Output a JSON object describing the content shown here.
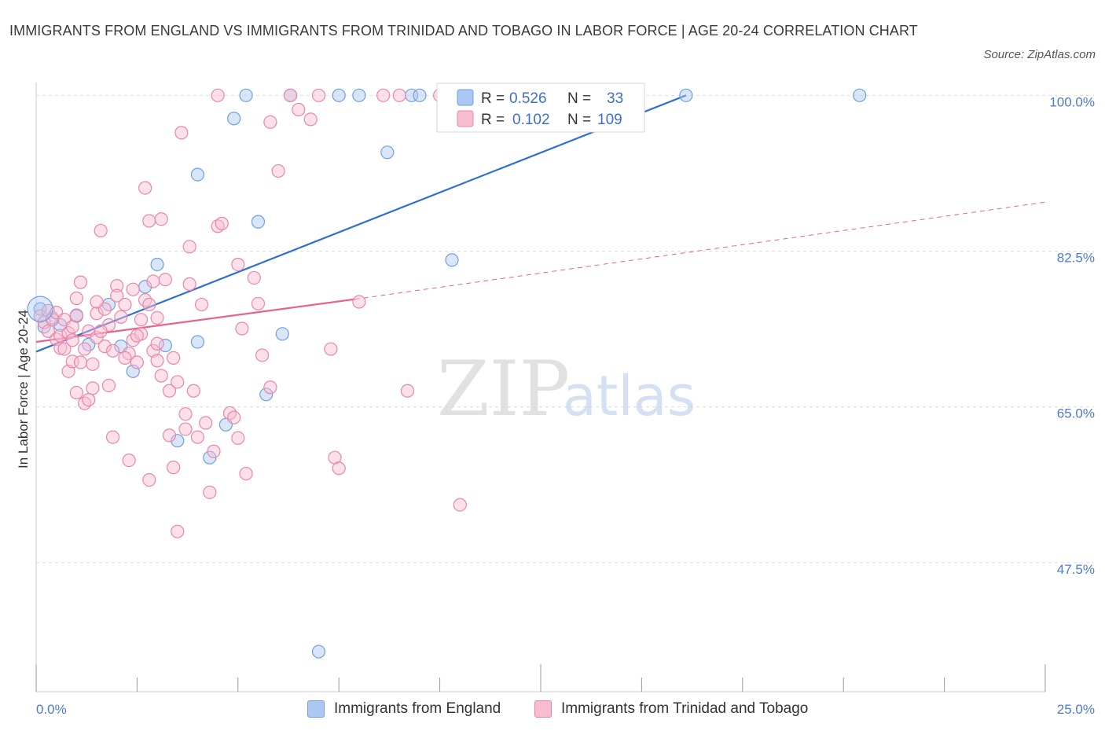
{
  "title": "IMMIGRANTS FROM ENGLAND VS IMMIGRANTS FROM TRINIDAD AND TOBAGO IN LABOR FORCE | AGE 20-24 CORRELATION CHART",
  "source": "Source: ZipAtlas.com",
  "watermark": {
    "zip": "ZIP",
    "atlas": "atlas"
  },
  "colors": {
    "england_fill": "#aac8f2",
    "england_stroke": "#6f9fe0",
    "england_line": "#2f6fd0",
    "tt_fill": "#f8bcd0",
    "tt_stroke": "#ea86a8",
    "tt_line": "#e4648f",
    "tick_blue": "#4a7bd0",
    "grid": "#dddddd"
  },
  "legend": {
    "england": {
      "r_label": "R =",
      "r_value": "0.526",
      "n_label": "N =",
      "n_value": "33"
    },
    "tt": {
      "r_label": "R =",
      "r_value": "0.102",
      "n_label": "N =",
      "n_value": "109"
    }
  },
  "bottom_legend": {
    "england": "Immigrants from England",
    "tt": "Immigrants from Trinidad and Tobago"
  },
  "chart_data": {
    "type": "scatter",
    "ylabel": "In Labor Force | Age 20-24",
    "x_tick_labels": {
      "min": "0.0%",
      "max": "25.0%"
    },
    "y_tick_labels": [
      "100.0%",
      "82.5%",
      "65.0%",
      "47.5%"
    ],
    "xlim": [
      0,
      25
    ],
    "ylim": [
      33,
      101
    ],
    "y_ticks": [
      100,
      82.5,
      65,
      47.5
    ],
    "grid": true,
    "legend_position": "top-center",
    "series": [
      {
        "name": "Immigrants from England",
        "key": "england",
        "points": [
          [
            0.1,
            76.0
          ],
          [
            0.6,
            74.2
          ],
          [
            1.0,
            75.2
          ],
          [
            1.3,
            72.0
          ],
          [
            1.8,
            76.5
          ],
          [
            2.1,
            71.8
          ],
          [
            2.4,
            69.0
          ],
          [
            2.7,
            78.5
          ],
          [
            3.0,
            81.0
          ],
          [
            3.2,
            71.9
          ],
          [
            3.5,
            61.2
          ],
          [
            4.0,
            91.1
          ],
          [
            4.0,
            72.3
          ],
          [
            4.3,
            59.3
          ],
          [
            4.7,
            63.0
          ],
          [
            4.9,
            97.4
          ],
          [
            5.2,
            100.0
          ],
          [
            5.5,
            85.8
          ],
          [
            5.7,
            66.4
          ],
          [
            6.1,
            73.2
          ],
          [
            6.3,
            100.0
          ],
          [
            7.0,
            37.5
          ],
          [
            7.5,
            100.0
          ],
          [
            8.0,
            100.0
          ],
          [
            8.7,
            93.6
          ],
          [
            9.3,
            100.0
          ],
          [
            9.5,
            100.0
          ],
          [
            10.3,
            81.5
          ],
          [
            12.6,
            100.0
          ],
          [
            16.1,
            100.0
          ],
          [
            20.4,
            100.0
          ],
          [
            0.2,
            74.0
          ],
          [
            0.4,
            75.0
          ]
        ],
        "trend": {
          "x": [
            0,
            16.1
          ],
          "y": [
            71.2,
            100.0
          ],
          "dashed_to": null
        }
      },
      {
        "name": "Immigrants from Trinidad and Tobago",
        "key": "tt",
        "points": [
          [
            0.1,
            75.2
          ],
          [
            0.2,
            74.5
          ],
          [
            0.3,
            73.5
          ],
          [
            0.3,
            75.8
          ],
          [
            0.4,
            74.8
          ],
          [
            0.5,
            72.6
          ],
          [
            0.5,
            75.6
          ],
          [
            0.6,
            71.6
          ],
          [
            0.6,
            73.0
          ],
          [
            0.7,
            74.8
          ],
          [
            0.7,
            71.5
          ],
          [
            0.8,
            73.3
          ],
          [
            0.8,
            69.0
          ],
          [
            0.9,
            70.1
          ],
          [
            0.9,
            72.5
          ],
          [
            1.0,
            75.3
          ],
          [
            1.0,
            77.2
          ],
          [
            1.0,
            66.6
          ],
          [
            1.1,
            79.0
          ],
          [
            1.1,
            70.0
          ],
          [
            1.2,
            71.5
          ],
          [
            1.2,
            65.4
          ],
          [
            1.3,
            73.5
          ],
          [
            1.3,
            65.8
          ],
          [
            1.4,
            67.1
          ],
          [
            1.4,
            69.8
          ],
          [
            1.5,
            72.8
          ],
          [
            1.5,
            75.5
          ],
          [
            1.6,
            84.8
          ],
          [
            1.7,
            76.0
          ],
          [
            1.7,
            71.8
          ],
          [
            1.8,
            74.2
          ],
          [
            1.8,
            67.4
          ],
          [
            1.9,
            71.3
          ],
          [
            1.9,
            61.6
          ],
          [
            2.0,
            78.6
          ],
          [
            2.1,
            75.1
          ],
          [
            2.2,
            76.5
          ],
          [
            2.3,
            71.0
          ],
          [
            2.3,
            59.0
          ],
          [
            2.4,
            78.2
          ],
          [
            2.4,
            72.5
          ],
          [
            2.5,
            70.0
          ],
          [
            2.6,
            73.2
          ],
          [
            2.6,
            74.8
          ],
          [
            2.7,
            77.0
          ],
          [
            2.7,
            89.6
          ],
          [
            2.8,
            85.9
          ],
          [
            2.8,
            56.8
          ],
          [
            2.8,
            76.5
          ],
          [
            2.9,
            71.3
          ],
          [
            2.9,
            79.1
          ],
          [
            3.0,
            75.0
          ],
          [
            3.0,
            72.1
          ],
          [
            3.1,
            86.1
          ],
          [
            3.1,
            68.5
          ],
          [
            3.2,
            79.3
          ],
          [
            3.3,
            66.8
          ],
          [
            3.3,
            61.8
          ],
          [
            3.4,
            70.5
          ],
          [
            3.4,
            58.2
          ],
          [
            3.5,
            67.8
          ],
          [
            3.6,
            95.8
          ],
          [
            3.7,
            64.2
          ],
          [
            3.7,
            62.5
          ],
          [
            3.8,
            78.8
          ],
          [
            3.8,
            83.0
          ],
          [
            3.9,
            66.8
          ],
          [
            4.0,
            61.6
          ],
          [
            4.1,
            76.5
          ],
          [
            4.2,
            63.2
          ],
          [
            4.3,
            55.4
          ],
          [
            4.4,
            60.0
          ],
          [
            4.5,
            85.3
          ],
          [
            4.6,
            85.6
          ],
          [
            4.8,
            64.3
          ],
          [
            4.9,
            63.8
          ],
          [
            5.0,
            81.0
          ],
          [
            5.0,
            61.5
          ],
          [
            5.1,
            73.8
          ],
          [
            5.2,
            57.5
          ],
          [
            5.4,
            79.5
          ],
          [
            5.5,
            76.6
          ],
          [
            5.6,
            70.8
          ],
          [
            5.8,
            67.2
          ],
          [
            6.0,
            91.5
          ],
          [
            6.3,
            100.0
          ],
          [
            6.5,
            98.4
          ],
          [
            6.8,
            97.3
          ],
          [
            7.0,
            100.0
          ],
          [
            7.3,
            71.5
          ],
          [
            7.4,
            59.3
          ],
          [
            7.5,
            58.1
          ],
          [
            8.0,
            76.8
          ],
          [
            8.6,
            100.0
          ],
          [
            9.0,
            100.0
          ],
          [
            9.2,
            66.8
          ],
          [
            10.0,
            100.0
          ],
          [
            10.5,
            54.0
          ],
          [
            3.5,
            51.0
          ],
          [
            1.5,
            76.8
          ],
          [
            2.2,
            70.5
          ],
          [
            0.9,
            74.0
          ],
          [
            1.6,
            73.5
          ],
          [
            2.0,
            77.5
          ],
          [
            3.0,
            70.2
          ],
          [
            4.5,
            100.0
          ],
          [
            5.8,
            97.0
          ],
          [
            2.5,
            73.0
          ]
        ],
        "trend": {
          "x": [
            0,
            7.9
          ],
          "y": [
            72.3,
            77.1
          ],
          "dashed_to": [
            25,
            88.0
          ]
        }
      }
    ]
  }
}
